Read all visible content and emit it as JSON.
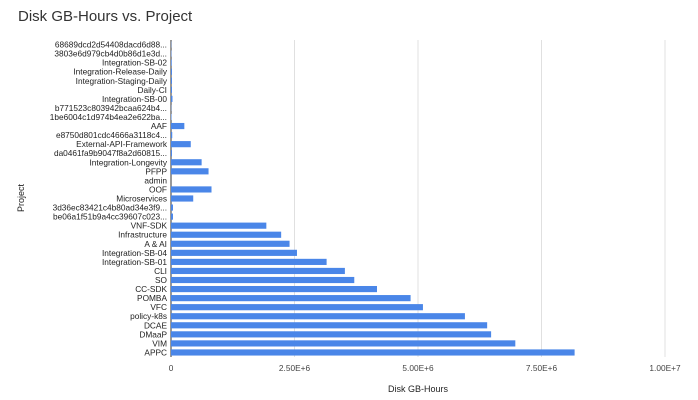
{
  "chart_data": {
    "type": "bar",
    "orientation": "horizontal",
    "title": "Disk GB-Hours vs. Project",
    "xlabel": "Disk GB-Hours",
    "ylabel": "Project",
    "xlim": [
      0,
      10000000
    ],
    "xticks": [
      0,
      2500000,
      5000000,
      7500000,
      10000000
    ],
    "xtick_labels": [
      "0",
      "2.50E+6",
      "5.00E+6",
      "7.50E+6",
      "1.00E+7"
    ],
    "grid": true,
    "legend": "none",
    "bar_color": "#4a86e8",
    "categories": [
      "68689dcd2d54408dacd6d88...",
      "3803e6d979cb4d0b86d1e3d...",
      "Integration-SB-02",
      "Integration-Release-Daily",
      "Integration-Staging-Daily",
      "Daily-CI",
      "Integration-SB-00",
      "b771523c803942bcaa624b4...",
      "1be6004c1d974b4ea2e622ba...",
      "AAF",
      "e8750d801cdc4666a3118c4...",
      "External-API-Framework",
      "da0461fa9b9047f8a2d60815...",
      "Integration-Longevity",
      "PFPP",
      "admin",
      "OOF",
      "Microservices",
      "3d36ec83421c4b80ad34e3f9...",
      "be06a1f51b9a4cc39607c023...",
      "VNF-SDK",
      "Infrastructure",
      "A & AI",
      "Integration-SB-04",
      "Integration-SB-01",
      "CLI",
      "SO",
      "CC-SDK",
      "POMBA",
      "VFC",
      "policy-k8s",
      "DCAE",
      "DMaaP",
      "VIM",
      "APPC"
    ],
    "values": [
      5000,
      8000,
      15000,
      20000,
      20000,
      20000,
      30000,
      5000,
      10000,
      270000,
      25000,
      400000,
      20000,
      620000,
      760000,
      0,
      820000,
      450000,
      40000,
      40000,
      1930000,
      2230000,
      2400000,
      2550000,
      3150000,
      3520000,
      3710000,
      4170000,
      4850000,
      5100000,
      5950000,
      6400000,
      6480000,
      6970000,
      8170000
    ]
  }
}
